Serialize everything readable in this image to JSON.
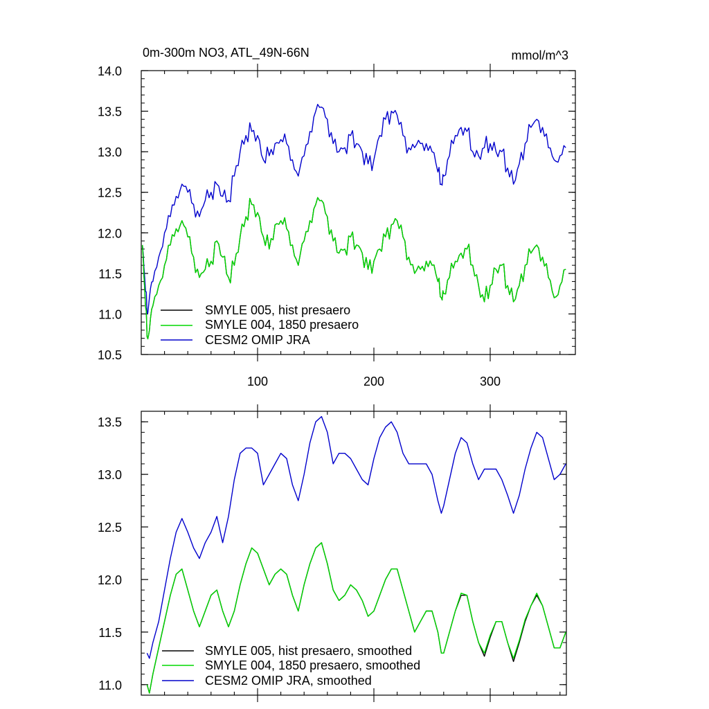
{
  "chart_data": [
    {
      "type": "line",
      "title": "0m-300m NO3, ATL_49N-66N",
      "units": "mmol/m^3",
      "xlim": [
        1,
        370
      ],
      "ylim": [
        10.5,
        14.0
      ],
      "x_ticks": [
        100,
        200,
        300
      ],
      "x_tick_labels": [
        "100",
        "200",
        "300"
      ],
      "y_ticks": [
        10.5,
        11.0,
        11.5,
        12.0,
        12.5,
        13.0,
        13.5,
        14.0
      ],
      "y_tick_labels": [
        "10.5",
        "11.0",
        "11.5",
        "12.0",
        "12.5",
        "13.0",
        "13.5",
        "14.0"
      ],
      "legend_position": "lower-left",
      "series": [
        {
          "name": "SMYLE 005, hist presaero",
          "color": "#000000",
          "x": [
            1,
            3,
            5,
            7,
            10,
            15,
            20,
            25,
            30,
            35,
            40,
            45,
            50,
            55,
            60,
            65,
            70,
            75,
            80,
            85,
            90,
            95,
            100,
            105,
            110,
            115,
            120,
            125,
            130,
            135,
            140,
            145,
            150,
            155,
            160,
            165,
            170,
            175,
            180,
            185,
            190,
            195,
            200,
            205,
            210,
            215,
            220,
            225,
            230,
            235,
            240,
            245,
            250,
            255,
            258,
            260,
            265,
            270,
            275,
            280,
            285,
            290,
            295,
            300,
            305,
            310,
            315,
            320,
            325,
            330,
            335,
            340,
            345,
            350,
            355,
            360,
            365
          ],
          "values": [
            11.85,
            11.3,
            10.72,
            10.8,
            11.1,
            11.35,
            11.6,
            11.85,
            12.05,
            12.15,
            11.95,
            11.7,
            11.45,
            11.55,
            11.65,
            11.9,
            11.7,
            11.45,
            11.6,
            11.95,
            12.2,
            12.35,
            12.25,
            11.95,
            11.8,
            12.1,
            12.15,
            12.05,
            11.85,
            11.6,
            11.9,
            12.15,
            12.35,
            12.4,
            12.2,
            11.9,
            11.75,
            11.8,
            11.95,
            11.85,
            11.75,
            11.55,
            11.65,
            11.8,
            11.95,
            12.1,
            12.15,
            11.95,
            11.7,
            11.5,
            11.55,
            11.65,
            11.6,
            11.4,
            11.2,
            11.25,
            11.45,
            11.65,
            11.75,
            11.8,
            11.6,
            11.35,
            11.15,
            11.35,
            11.55,
            11.6,
            11.35,
            11.15,
            11.35,
            11.6,
            11.75,
            11.85,
            11.7,
            11.45,
            11.2,
            11.35,
            11.55
          ]
        },
        {
          "name": "SMYLE 004, 1850 presaero",
          "color": "#00d800",
          "x": [
            1,
            3,
            5,
            7,
            10,
            15,
            20,
            25,
            30,
            35,
            40,
            45,
            50,
            55,
            60,
            65,
            70,
            75,
            80,
            85,
            90,
            95,
            100,
            105,
            110,
            115,
            120,
            125,
            130,
            135,
            140,
            145,
            150,
            155,
            160,
            165,
            170,
            175,
            180,
            185,
            190,
            195,
            200,
            205,
            210,
            215,
            220,
            225,
            230,
            235,
            240,
            245,
            250,
            255,
            258,
            260,
            265,
            270,
            275,
            280,
            285,
            290,
            295,
            300,
            305,
            310,
            315,
            320,
            325,
            330,
            335,
            340,
            345,
            350,
            355,
            360,
            365
          ],
          "values": [
            11.85,
            11.3,
            10.72,
            10.8,
            11.1,
            11.35,
            11.6,
            11.85,
            12.05,
            12.15,
            11.95,
            11.7,
            11.45,
            11.55,
            11.65,
            11.9,
            11.7,
            11.45,
            11.6,
            11.95,
            12.2,
            12.35,
            12.25,
            11.95,
            11.8,
            12.1,
            12.15,
            12.05,
            11.85,
            11.6,
            11.9,
            12.15,
            12.35,
            12.4,
            12.2,
            11.9,
            11.75,
            11.8,
            11.95,
            11.85,
            11.75,
            11.55,
            11.65,
            11.8,
            11.95,
            12.1,
            12.15,
            11.95,
            11.7,
            11.5,
            11.55,
            11.65,
            11.6,
            11.4,
            11.2,
            11.25,
            11.45,
            11.65,
            11.75,
            11.8,
            11.6,
            11.35,
            11.15,
            11.35,
            11.55,
            11.6,
            11.35,
            11.15,
            11.35,
            11.6,
            11.75,
            11.85,
            11.7,
            11.45,
            11.2,
            11.35,
            11.55
          ]
        },
        {
          "name": "CESM2 OMIP JRA",
          "color": "#0000cc",
          "x": [
            1,
            3,
            5,
            7,
            10,
            15,
            20,
            25,
            30,
            35,
            40,
            45,
            50,
            55,
            60,
            65,
            70,
            75,
            80,
            85,
            90,
            95,
            100,
            105,
            110,
            115,
            120,
            125,
            130,
            135,
            140,
            145,
            150,
            155,
            160,
            165,
            170,
            175,
            180,
            185,
            190,
            195,
            200,
            205,
            210,
            215,
            220,
            225,
            230,
            235,
            240,
            245,
            250,
            255,
            258,
            260,
            265,
            270,
            275,
            280,
            285,
            290,
            295,
            300,
            305,
            310,
            315,
            320,
            325,
            330,
            335,
            340,
            345,
            350,
            355,
            360,
            365
          ],
          "values": [
            11.85,
            11.45,
            11.0,
            11.2,
            11.4,
            11.7,
            12.0,
            12.2,
            12.45,
            12.6,
            12.5,
            12.35,
            12.2,
            12.4,
            12.5,
            12.6,
            12.45,
            12.4,
            12.7,
            13.0,
            13.2,
            13.25,
            13.2,
            12.9,
            12.95,
            13.1,
            13.15,
            13.1,
            12.9,
            12.7,
            12.95,
            13.25,
            13.5,
            13.55,
            13.4,
            13.1,
            13.0,
            13.05,
            13.2,
            13.1,
            13.0,
            12.85,
            12.9,
            13.2,
            13.4,
            13.5,
            13.45,
            13.2,
            13.05,
            13.05,
            13.1,
            13.1,
            13.0,
            12.75,
            12.6,
            12.7,
            12.95,
            13.2,
            13.3,
            13.25,
            13.0,
            12.95,
            13.05,
            13.1,
            13.0,
            13.0,
            12.8,
            12.6,
            12.85,
            13.1,
            13.3,
            13.4,
            13.3,
            13.05,
            12.9,
            12.95,
            13.05
          ]
        }
      ]
    },
    {
      "type": "line",
      "xlim": [
        1,
        370
      ],
      "ylim": [
        10.9,
        13.6
      ],
      "x_ticks": [
        100,
        200,
        300
      ],
      "y_ticks": [
        11.0,
        11.5,
        12.0,
        12.5,
        13.0,
        13.5
      ],
      "y_tick_labels": [
        "11.0",
        "11.5",
        "12.0",
        "12.5",
        "13.0",
        "13.5"
      ],
      "legend_position": "lower-left",
      "series": [
        {
          "name": "SMYLE 005, hist presaero, smoothed",
          "color": "#000000",
          "x": [
            5,
            7,
            10,
            15,
            20,
            25,
            30,
            35,
            40,
            45,
            50,
            55,
            60,
            65,
            70,
            75,
            80,
            85,
            90,
            95,
            100,
            105,
            110,
            115,
            120,
            125,
            130,
            135,
            140,
            145,
            150,
            155,
            160,
            165,
            170,
            175,
            180,
            185,
            190,
            195,
            200,
            205,
            210,
            215,
            220,
            225,
            230,
            235,
            240,
            245,
            250,
            255,
            258,
            260,
            265,
            270,
            275,
            280,
            285,
            290,
            295,
            300,
            305,
            310,
            315,
            320,
            325,
            330,
            335,
            340,
            345,
            350,
            355,
            360,
            365
          ],
          "values": [
            11.0,
            10.92,
            11.1,
            11.35,
            11.6,
            11.85,
            12.05,
            12.1,
            11.9,
            11.7,
            11.55,
            11.7,
            11.85,
            11.9,
            11.7,
            11.55,
            11.7,
            11.95,
            12.15,
            12.3,
            12.25,
            12.1,
            11.95,
            12.05,
            12.1,
            12.05,
            11.85,
            11.7,
            11.95,
            12.15,
            12.3,
            12.35,
            12.15,
            11.9,
            11.8,
            11.85,
            11.95,
            11.9,
            11.8,
            11.65,
            11.7,
            11.85,
            12.0,
            12.1,
            12.1,
            11.9,
            11.7,
            11.5,
            11.6,
            11.7,
            11.7,
            11.5,
            11.3,
            11.3,
            11.5,
            11.7,
            11.85,
            11.85,
            11.6,
            11.4,
            11.27,
            11.45,
            11.6,
            11.6,
            11.4,
            11.22,
            11.4,
            11.6,
            11.75,
            11.85,
            11.75,
            11.55,
            11.35,
            11.35,
            11.5
          ]
        },
        {
          "name": "SMYLE 004, 1850 presaero, smoothed",
          "color": "#00d800",
          "x": [
            5,
            7,
            10,
            15,
            20,
            25,
            30,
            35,
            40,
            45,
            50,
            55,
            60,
            65,
            70,
            75,
            80,
            85,
            90,
            95,
            100,
            105,
            110,
            115,
            120,
            125,
            130,
            135,
            140,
            145,
            150,
            155,
            160,
            165,
            170,
            175,
            180,
            185,
            190,
            195,
            200,
            205,
            210,
            215,
            220,
            225,
            230,
            235,
            240,
            245,
            250,
            255,
            258,
            260,
            265,
            270,
            275,
            280,
            285,
            290,
            295,
            300,
            305,
            310,
            315,
            320,
            325,
            330,
            335,
            340,
            345,
            350,
            355,
            360,
            365
          ],
          "values": [
            11.0,
            10.92,
            11.1,
            11.35,
            11.6,
            11.85,
            12.05,
            12.1,
            11.9,
            11.7,
            11.55,
            11.7,
            11.85,
            11.9,
            11.7,
            11.55,
            11.7,
            11.95,
            12.15,
            12.3,
            12.25,
            12.1,
            11.95,
            12.05,
            12.1,
            12.05,
            11.85,
            11.7,
            11.95,
            12.15,
            12.3,
            12.35,
            12.15,
            11.9,
            11.8,
            11.85,
            11.95,
            11.9,
            11.8,
            11.65,
            11.7,
            11.85,
            12.0,
            12.1,
            12.1,
            11.9,
            11.7,
            11.5,
            11.6,
            11.7,
            11.7,
            11.5,
            11.3,
            11.3,
            11.5,
            11.7,
            11.87,
            11.85,
            11.6,
            11.4,
            11.3,
            11.47,
            11.6,
            11.6,
            11.4,
            11.25,
            11.42,
            11.62,
            11.75,
            11.87,
            11.75,
            11.55,
            11.35,
            11.35,
            11.5
          ]
        },
        {
          "name": "CESM2 OMIP JRA, smoothed",
          "color": "#0000cc",
          "x": [
            5,
            7,
            10,
            15,
            20,
            25,
            30,
            35,
            40,
            45,
            50,
            55,
            60,
            65,
            70,
            75,
            80,
            85,
            90,
            95,
            100,
            105,
            110,
            115,
            120,
            125,
            130,
            135,
            140,
            145,
            150,
            155,
            160,
            165,
            170,
            175,
            180,
            185,
            190,
            195,
            200,
            205,
            210,
            215,
            220,
            225,
            230,
            235,
            240,
            245,
            250,
            255,
            258,
            260,
            265,
            270,
            275,
            280,
            285,
            290,
            295,
            300,
            305,
            310,
            315,
            320,
            325,
            330,
            335,
            340,
            345,
            350,
            355,
            360,
            365
          ],
          "values": [
            11.3,
            11.25,
            11.4,
            11.6,
            11.9,
            12.2,
            12.45,
            12.58,
            12.45,
            12.3,
            12.2,
            12.35,
            12.45,
            12.6,
            12.35,
            12.6,
            12.95,
            13.2,
            13.25,
            13.25,
            13.2,
            12.9,
            13.0,
            13.1,
            13.2,
            13.15,
            12.9,
            12.75,
            13.0,
            13.3,
            13.5,
            13.55,
            13.4,
            13.1,
            13.2,
            13.2,
            13.15,
            13.05,
            12.95,
            12.9,
            13.15,
            13.35,
            13.45,
            13.5,
            13.4,
            13.2,
            13.1,
            13.1,
            13.1,
            13.1,
            13.0,
            12.75,
            12.63,
            12.7,
            12.95,
            13.2,
            13.35,
            13.3,
            13.1,
            12.95,
            13.05,
            13.05,
            13.05,
            12.95,
            12.8,
            12.63,
            12.8,
            13.05,
            13.25,
            13.4,
            13.35,
            13.15,
            12.95,
            13.0,
            13.1
          ]
        }
      ]
    }
  ]
}
